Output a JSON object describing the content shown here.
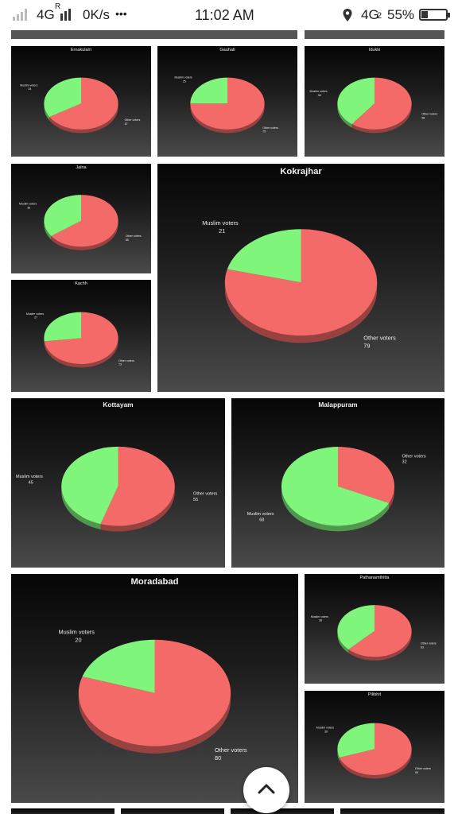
{
  "status_bar": {
    "network_1": "4G",
    "roaming": "R",
    "speed": "0K/s",
    "more": "•••",
    "time": "11:02 AM",
    "network_2": "4G",
    "network_2_sub": "2",
    "battery": "55%"
  },
  "colors": {
    "muslim": "#80f57c",
    "other": "#f46a68",
    "panel_top": "#060606",
    "panel_bottom": "#4a4a4a"
  },
  "icons": {
    "scroll_top": "chevron-up-icon",
    "location": "location-pin-icon"
  },
  "chart_data": [
    {
      "type": "pie",
      "title": "Ernakulam",
      "labels": [
        "Muslim voters",
        "Other voters"
      ],
      "values": [
        34,
        67
      ]
    },
    {
      "type": "pie",
      "title": "Gauhati",
      "labels": [
        "Muslim voters",
        "Other voters"
      ],
      "values": [
        25,
        75
      ]
    },
    {
      "type": "pie",
      "title": "Idukki",
      "labels": [
        "Muslim voters",
        "Other voters"
      ],
      "values": [
        38,
        58
      ]
    },
    {
      "type": "pie",
      "title": "Jalna",
      "labels": [
        "Muslim voters",
        "Other voters"
      ],
      "values": [
        35,
        65
      ]
    },
    {
      "type": "pie",
      "title": "Kokrajhar",
      "labels": [
        "Muslim voters",
        "Other voters"
      ],
      "values": [
        21,
        79
      ]
    },
    {
      "type": "pie",
      "title": "Kachh",
      "labels": [
        "Muslim voters",
        "Other voters"
      ],
      "values": [
        27,
        73
      ]
    },
    {
      "type": "pie",
      "title": "Kottayam",
      "labels": [
        "Muslim voters",
        "Other voters"
      ],
      "values": [
        45,
        55
      ]
    },
    {
      "type": "pie",
      "title": "Malappuram",
      "labels": [
        "Muslim voters",
        "Other voters"
      ],
      "values": [
        68,
        32
      ]
    },
    {
      "type": "pie",
      "title": "Moradabad",
      "labels": [
        "Muslim voters",
        "Other voters"
      ],
      "values": [
        20,
        80
      ]
    },
    {
      "type": "pie",
      "title": "Pathanamthitta",
      "labels": [
        "Muslim voters",
        "Other voters"
      ],
      "values": [
        38,
        63
      ]
    },
    {
      "type": "pie",
      "title": "Pilibhit",
      "labels": [
        "Muslim voters",
        "Other voters"
      ],
      "values": [
        30,
        69
      ]
    }
  ]
}
